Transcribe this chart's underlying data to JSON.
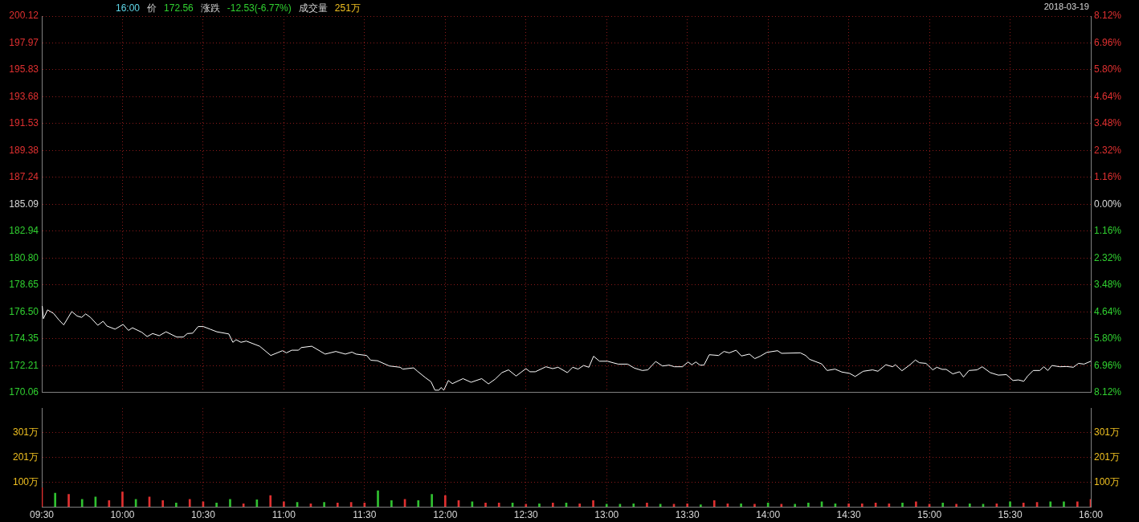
{
  "chart_data": [
    {
      "type": "line",
      "subtitle": "2018-03-19",
      "annotations": [
        "16:00",
        "价",
        "172.56",
        "涨跌",
        "-12.53(-6.77%)",
        "成交量",
        "251万"
      ],
      "x": [
        9.503,
        9.51,
        9.536,
        9.573,
        9.606,
        9.636,
        9.686,
        9.719,
        9.747,
        9.772,
        9.802,
        9.847,
        9.88,
        9.904,
        9.954,
        10.004,
        10.037,
        10.062,
        10.12,
        10.153,
        10.187,
        10.228,
        10.27,
        10.336,
        10.377,
        10.402,
        10.435,
        10.469,
        10.501,
        10.543,
        10.585,
        10.659,
        10.684,
        10.704,
        10.734,
        10.767,
        10.85,
        10.919,
        10.991,
        11.016,
        11.049,
        11.091,
        11.107,
        11.173,
        11.256,
        11.322,
        11.381,
        11.422,
        11.447,
        11.513,
        11.538,
        11.58,
        11.654,
        11.72,
        11.737,
        11.804,
        11.828,
        11.878,
        11.912,
        11.936,
        11.961,
        11.974,
        11.991,
        12.019,
        12.044,
        12.11,
        12.16,
        12.226,
        12.268,
        12.309,
        12.351,
        12.392,
        12.439,
        12.467,
        12.5,
        12.525,
        12.558,
        12.624,
        12.666,
        12.699,
        12.757,
        12.79,
        12.823,
        12.857,
        12.89,
        12.919,
        12.956,
        13.006,
        13.039,
        13.072,
        13.13,
        13.172,
        13.221,
        13.255,
        13.304,
        13.346,
        13.387,
        13.42,
        13.47,
        13.504,
        13.528,
        13.553,
        13.578,
        13.603,
        13.636,
        13.694,
        13.727,
        13.76,
        13.802,
        13.835,
        13.885,
        13.918,
        13.951,
        13.993,
        14.059,
        14.084,
        14.2,
        14.233,
        14.258,
        14.332,
        14.366,
        14.415,
        14.457,
        14.506,
        14.54,
        14.59,
        14.648,
        14.681,
        14.73,
        14.772,
        14.789,
        14.83,
        14.88,
        14.913,
        14.938,
        14.979,
        15.021,
        15.046,
        15.079,
        15.104,
        15.145,
        15.187,
        15.211,
        15.245,
        15.295,
        15.327,
        15.377,
        15.427,
        15.477,
        15.518,
        15.551,
        15.585,
        15.609,
        15.643,
        15.684,
        15.709,
        15.734,
        15.759,
        15.808,
        15.85,
        15.892,
        15.924,
        15.958,
        16
      ],
      "series": [
        {
          "color": "#ffffff",
          "values": [
            176.97,
            175.96,
            176.66,
            176.38,
            175.86,
            175.46,
            176.53,
            176.17,
            176.06,
            176.34,
            176.06,
            175.43,
            175.75,
            175.37,
            175.12,
            175.5,
            175.02,
            175.23,
            174.87,
            174.53,
            174.77,
            174.6,
            174.91,
            174.49,
            174.49,
            174.77,
            174.8,
            175.33,
            175.33,
            175.12,
            174.91,
            174.74,
            174.07,
            174.28,
            174.07,
            174.17,
            173.76,
            173.02,
            173.4,
            173.23,
            173.44,
            173.44,
            173.65,
            173.76,
            173.13,
            173.34,
            173.13,
            173.29,
            173.13,
            173.02,
            172.64,
            172.6,
            172.18,
            172.08,
            171.93,
            172.03,
            171.76,
            171.24,
            170.92,
            170.25,
            170.25,
            170.46,
            170.25,
            171.02,
            170.77,
            171.17,
            170.88,
            171.17,
            170.75,
            171.13,
            171.65,
            171.87,
            171.38,
            171.65,
            171.97,
            171.72,
            171.72,
            172.12,
            171.97,
            172.08,
            171.65,
            172.08,
            171.93,
            172.22,
            172.08,
            172.96,
            172.56,
            172.56,
            172.44,
            172.33,
            172.33,
            172.01,
            171.82,
            171.87,
            172.54,
            172.18,
            172.25,
            172.12,
            172.12,
            172.5,
            172.28,
            172.5,
            172.25,
            172.25,
            173.08,
            173.02,
            173.34,
            173.23,
            173.44,
            172.98,
            173.13,
            172.77,
            172.96,
            173.27,
            173.4,
            173.19,
            173.23,
            173.02,
            172.71,
            172.35,
            171.82,
            171.93,
            171.7,
            171.59,
            171.34,
            171.76,
            171.87,
            171.76,
            172.28,
            172.12,
            172.28,
            171.8,
            172.28,
            172.66,
            172.44,
            172.39,
            171.87,
            172.08,
            171.91,
            171.91,
            171.55,
            171.72,
            171.3,
            171.82,
            171.87,
            172.12,
            171.65,
            171.45,
            171.49,
            171.02,
            171.07,
            170.96,
            171.38,
            171.82,
            171.82,
            172.12,
            171.82,
            172.22,
            172.12,
            172.14,
            172.08,
            172.39,
            172.33,
            172.56
          ]
        }
      ],
      "xlim": [
        9.5,
        16
      ],
      "xticks": [
        {
          "value": 9.5,
          "label": null
        },
        {
          "value": 10,
          "label": null
        },
        {
          "value": 10.5,
          "label": null
        },
        {
          "value": 11,
          "label": null
        },
        {
          "value": 11.5,
          "label": null
        },
        {
          "value": 12,
          "label": null
        },
        {
          "value": 12.5,
          "label": null
        },
        {
          "value": 13,
          "label": null
        },
        {
          "value": 13.5,
          "label": null
        },
        {
          "value": 14,
          "label": null
        },
        {
          "value": 14.5,
          "label": null
        },
        {
          "value": 15,
          "label": null
        },
        {
          "value": 15.5,
          "label": null
        },
        {
          "value": 16,
          "label": null
        }
      ],
      "ylim": [
        170.06,
        200.12
      ],
      "yticks": [
        170.06,
        172.21,
        174.35,
        {
          "value": 176.5,
          "label": "176.50"
        },
        178.65,
        {
          "value": 180.8,
          "label": "180.80"
        },
        182.94,
        185.09,
        187.24,
        189.38,
        191.53,
        193.68,
        195.83,
        197.97,
        200.12
      ],
      "y2lim": [
        -8.12,
        8.12
      ],
      "y2ticks": [
        {
          "value": -8.12,
          "label": "8.12%"
        },
        {
          "value": -6.96,
          "label": "6.96%"
        },
        {
          "value": -5.8,
          "label": "5.80%"
        },
        {
          "value": -4.64,
          "label": "4.64%"
        },
        {
          "value": -3.48,
          "label": "3.48%"
        },
        {
          "value": -2.32,
          "label": "2.32%"
        },
        {
          "value": -1.16,
          "label": "1.16%"
        },
        {
          "value": 0,
          "label": "0.00%"
        },
        {
          "value": 1.16,
          "label": "1.16%"
        },
        {
          "value": 2.32,
          "label": "2.32%"
        },
        {
          "value": 3.48,
          "label": "3.48%"
        },
        {
          "value": 4.64,
          "label": "4.64%"
        },
        {
          "value": 5.8,
          "label": "5.80%"
        },
        {
          "value": 6.96,
          "label": "6.96%"
        },
        {
          "value": 8.12,
          "label": "8.12%"
        }
      ],
      "tick_labels": "y",
      "grid": true
    },
    {
      "type": "bar",
      "x": [
        9.5,
        9.583,
        9.667,
        9.75,
        9.833,
        9.917,
        10,
        10.083,
        10.167,
        10.25,
        10.333,
        10.417,
        10.5,
        10.583,
        10.667,
        10.75,
        10.833,
        10.917,
        11,
        11.083,
        11.167,
        11.25,
        11.333,
        11.417,
        11.5,
        11.583,
        11.667,
        11.75,
        11.833,
        11.917,
        12,
        12.083,
        12.167,
        12.25,
        12.333,
        12.417,
        12.5,
        12.583,
        12.667,
        12.75,
        12.833,
        12.917,
        13,
        13.083,
        13.167,
        13.25,
        13.333,
        13.417,
        13.5,
        13.583,
        13.667,
        13.75,
        13.833,
        13.917,
        14,
        14.083,
        14.167,
        14.25,
        14.333,
        14.417,
        14.5,
        14.583,
        14.667,
        14.75,
        14.833,
        14.917,
        15,
        15.083,
        15.167,
        15.25,
        15.333,
        15.417,
        15.5,
        15.583,
        15.667,
        15.75,
        15.833,
        15.917,
        16
      ],
      "values": [
        77,
        55,
        50,
        30,
        40,
        25,
        60,
        30,
        40,
        25,
        15,
        30,
        20,
        15,
        30,
        12,
        28,
        45,
        20,
        18,
        12,
        18,
        15,
        18,
        15,
        65,
        25,
        30,
        25,
        50,
        45,
        25,
        20,
        15,
        15,
        15,
        10,
        12,
        15,
        15,
        12,
        25,
        10,
        10,
        12,
        15,
        10,
        10,
        12,
        8,
        25,
        12,
        12,
        10,
        15,
        10,
        10,
        15,
        20,
        12,
        12,
        12,
        15,
        12,
        15,
        20,
        10,
        15,
        10,
        12,
        10,
        12,
        20,
        15,
        18,
        20,
        20,
        20,
        30
      ],
      "colors": [
        "#e03030",
        "#30c030",
        "#e03030",
        "#30c030",
        "#30c030",
        "#e03030",
        "#e03030",
        "#30c030",
        "#e03030",
        "#e03030",
        "#30c030",
        "#e03030",
        "#e03030",
        "#30c030",
        "#30c030",
        "#e03030",
        "#30c030",
        "#e03030",
        "#e03030",
        "#30c030",
        "#e03030",
        "#30c030",
        "#e03030",
        "#e03030",
        "#e03030",
        "#30c030",
        "#30c030",
        "#e03030",
        "#30c030",
        "#30c030",
        "#e03030",
        "#e03030",
        "#30c030",
        "#e03030",
        "#e03030",
        "#30c030",
        "#e03030",
        "#30c030",
        "#e03030",
        "#30c030",
        "#e03030",
        "#e03030",
        "#30c030",
        "#30c030",
        "#30c030",
        "#e03030",
        "#30c030",
        "#e03030",
        "#e03030",
        "#30c030",
        "#e03030",
        "#e03030",
        "#30c030",
        "#e03030",
        "#30c030",
        "#e03030",
        "#30c030",
        "#30c030",
        "#30c030",
        "#30c030",
        "#e03030",
        "#e03030",
        "#e03030",
        "#e03030",
        "#30c030",
        "#e03030",
        "#e03030",
        "#30c030",
        "#e03030",
        "#30c030",
        "#30c030",
        "#e03030",
        "#30c030",
        "#e03030",
        "#e03030",
        "#30c030",
        "#30c030",
        "#e03030",
        "#e03030"
      ],
      "xlim": [
        9.5,
        16
      ],
      "xticks": [
        {
          "value": 9.5,
          "label": "09:30"
        },
        {
          "value": 10,
          "label": "10:00"
        },
        {
          "value": 10.5,
          "label": "10:30"
        },
        {
          "value": 11,
          "label": "11:00"
        },
        {
          "value": 11.5,
          "label": "11:30"
        },
        {
          "value": 12,
          "label": "12:00"
        },
        {
          "value": 12.5,
          "label": "12:30"
        },
        {
          "value": 13,
          "label": "13:00"
        },
        {
          "value": 13.5,
          "label": "13:30"
        },
        {
          "value": 14,
          "label": "14:00"
        },
        {
          "value": 14.5,
          "label": "14:30"
        },
        {
          "value": 15,
          "label": "15:00"
        },
        {
          "value": 15.5,
          "label": "15:30"
        },
        {
          "value": 16,
          "label": "16:00"
        }
      ],
      "ylim": [
        0,
        400
      ],
      "yticks": [
        {
          "value": 100,
          "label": "100万"
        },
        {
          "value": 201,
          "label": "201万"
        },
        {
          "value": 301,
          "label": "301万"
        }
      ],
      "y2lim": [
        0,
        400
      ],
      "y2ticks": [
        {
          "value": 100,
          "label": "100万"
        },
        {
          "value": 201,
          "label": "201万"
        },
        {
          "value": 301,
          "label": "301万"
        }
      ],
      "grid": true
    }
  ]
}
